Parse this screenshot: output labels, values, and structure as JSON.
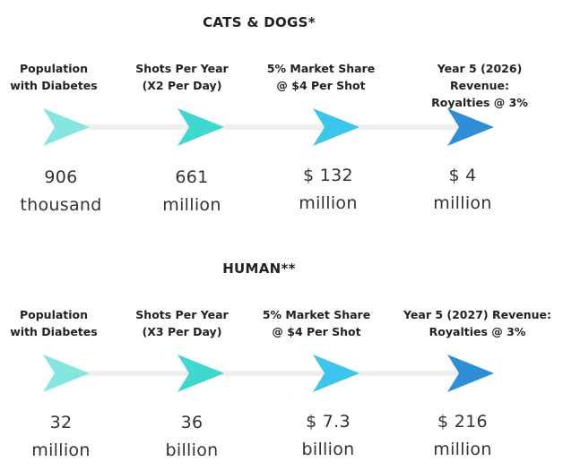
{
  "colors": {
    "arrow_1": "#85e6e0",
    "arrow_2": "#3ed8cf",
    "arrow_3": "#3cc6ec",
    "arrow_4": "#2f8fd6",
    "track": "#efefef"
  },
  "sections": [
    {
      "title": "CATS & DOGS*",
      "steps": [
        {
          "label_1": "Population",
          "label_2": "with Diabetes",
          "value_1": "906",
          "value_2": "thousand"
        },
        {
          "label_1": "Shots Per Year",
          "label_2": "(X2 Per Day)",
          "value_1": "661",
          "value_2": "million"
        },
        {
          "label_1": "5% Market Share",
          "label_2": "@ $4 Per Shot",
          "value_1": "$ 132",
          "value_2": "million"
        },
        {
          "label_1": "Year 5 (2026) Revenue:",
          "label_2": "Royalties @ 3%",
          "value_1": "$ 4",
          "value_2": "million"
        }
      ]
    },
    {
      "title": "HUMAN**",
      "steps": [
        {
          "label_1": "Population",
          "label_2": "with Diabetes",
          "value_1": "32",
          "value_2": "million"
        },
        {
          "label_1": "Shots Per Year",
          "label_2": "(X3 Per Day)",
          "value_1": "36",
          "value_2": "billion"
        },
        {
          "label_1": "5% Market Share",
          "label_2": "@ $4 Per Shot",
          "value_1": "$ 7.3",
          "value_2": "billion"
        },
        {
          "label_1": "Year 5 (2027) Revenue:",
          "label_2": "Royalties @ 3%",
          "value_1": "$ 216",
          "value_2": "million"
        }
      ]
    }
  ]
}
